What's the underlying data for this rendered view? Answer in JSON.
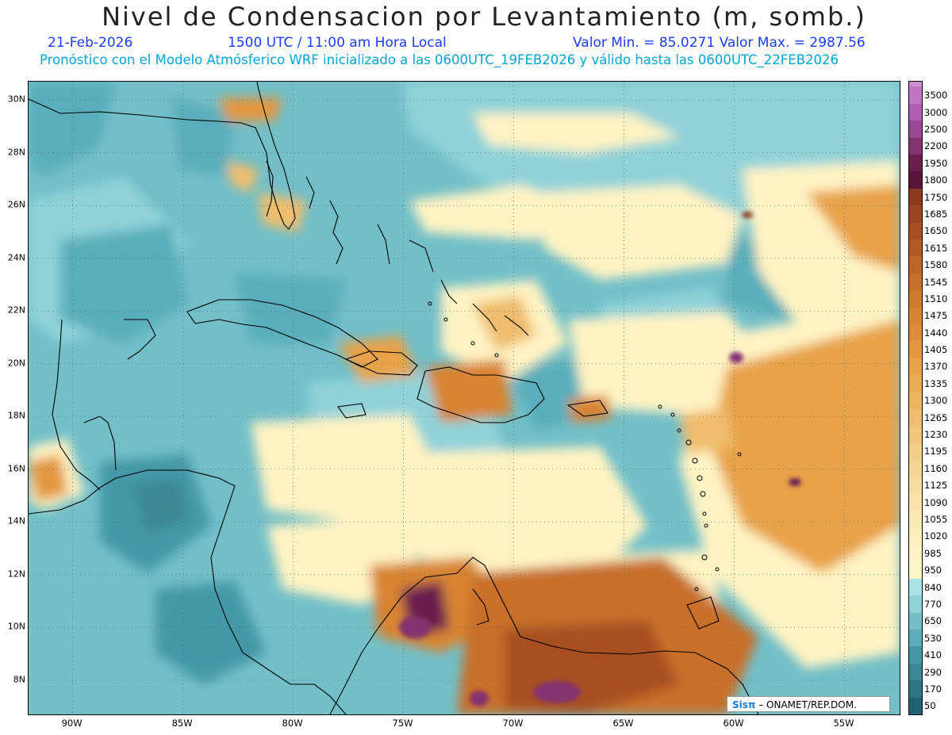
{
  "header": {
    "title": "Nivel de Condensacion por Levantamiento (m, somb.)",
    "date": "21-Feb-2026",
    "time": "1500 UTC / 11:00 am Hora Local",
    "min_max": "Valor Min. = 85.0271   Valor Max. = 2987.56",
    "model_info": "Pronóstico con el Modelo Atmósferico WRF inicializado a las 0600UTC_19FEB2026 y válido hasta las  0600UTC_22FEB2026"
  },
  "axes": {
    "lat_labels": [
      "30N",
      "28N",
      "26N",
      "24N",
      "22N",
      "20N",
      "18N",
      "16N",
      "14N",
      "12N",
      "10N",
      "8N"
    ],
    "lon_labels": [
      "90W",
      "85W",
      "80W",
      "75W",
      "70W",
      "65W",
      "60W",
      "55W"
    ],
    "lon_range": [
      -92,
      -52.5
    ],
    "lat_range": [
      6.7,
      30.7
    ]
  },
  "colorbar": {
    "levels": [
      "3500",
      "3000",
      "2500",
      "2200",
      "1950",
      "1800",
      "1750",
      "1685",
      "1650",
      "1615",
      "1580",
      "1545",
      "1510",
      "1475",
      "1440",
      "1405",
      "1370",
      "1335",
      "1300",
      "1265",
      "1230",
      "1195",
      "1160",
      "1125",
      "1090",
      "1055",
      "1020",
      "985",
      "950",
      "840",
      "770",
      "650",
      "530",
      "410",
      "290",
      "170",
      "50"
    ],
    "colors": [
      "#c275c2",
      "#b25cb2",
      "#9a4796",
      "#84336f",
      "#6b1f4e",
      "#5a1638",
      "#8b3a1e",
      "#9a4520",
      "#a84f22",
      "#b45a24",
      "#bf6527",
      "#c86f2b",
      "#d07a2e",
      "#d88433",
      "#de8e3a",
      "#e39841",
      "#e8a24a",
      "#eaab55",
      "#edb461",
      "#efbd6d",
      "#f1c67a",
      "#f3ce87",
      "#f5d593",
      "#f7dc9e",
      "#f9e3a9",
      "#fbe9b3",
      "#fdefbd",
      "#fff3c3",
      "#fff6c6",
      "#a9e3e6",
      "#8fd2d8",
      "#72bfc8",
      "#5aaebb",
      "#4598a8",
      "#3a8796",
      "#2e7686",
      "#1f6375"
    ]
  },
  "credit": {
    "logo": "Sisπ",
    "text": " – ONAMET/REP.DOM."
  }
}
